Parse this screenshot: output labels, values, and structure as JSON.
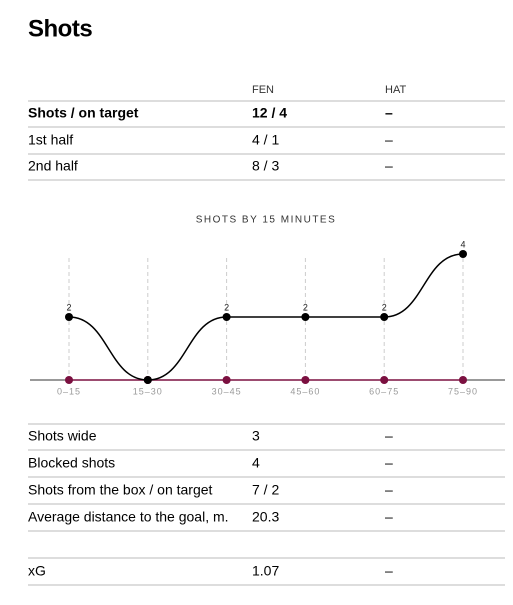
{
  "title": "Shots",
  "top_table": {
    "columns": [
      "FEN",
      "HAT"
    ],
    "rows": [
      [
        "Shots / on target",
        "12 / 4",
        "–"
      ],
      [
        "1st half",
        "4 / 1",
        "–"
      ],
      [
        "2nd half",
        "8 / 3",
        "–"
      ]
    ]
  },
  "chart_data": {
    "type": "line",
    "title": "SHOTS BY 15 MINUTES",
    "categories": [
      "0–15",
      "15–30",
      "30–45",
      "45–60",
      "60–75",
      "75–90"
    ],
    "series": [
      {
        "color": "#7b1040",
        "values": [
          0,
          0,
          0,
          0,
          0,
          0
        ]
      },
      {
        "color": "#000000",
        "values": [
          2,
          0,
          2,
          2,
          2,
          4
        ]
      }
    ],
    "ylim": [
      0,
      4
    ]
  },
  "bottom_table": {
    "rows": [
      [
        "Shots wide",
        "3",
        "–"
      ],
      [
        "Blocked shots",
        "4",
        "–"
      ],
      [
        "Shots from the box / on target",
        "7 / 2",
        "–"
      ],
      [
        "Average distance to the goal, m.",
        "20.3",
        "–"
      ]
    ]
  },
  "xg_table": {
    "rows": [
      [
        "xG",
        "1.07",
        "–"
      ]
    ]
  }
}
